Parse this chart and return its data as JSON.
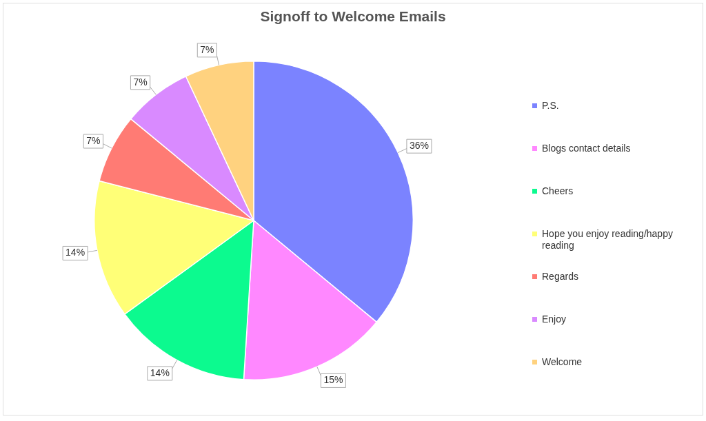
{
  "chart_data": {
    "type": "pie",
    "title": "Signoff to Welcome Emails",
    "categories": [
      "P.S.",
      "Blogs contact details",
      "Cheers",
      "Hope you enjoy reading/happy reading",
      "Regards",
      "Enjoy",
      "Welcome"
    ],
    "values": [
      36,
      15,
      14,
      14,
      7,
      7,
      7
    ],
    "colors": [
      "#7b83ff",
      "#ff88ff",
      "#0cfa8f",
      "#ffff77",
      "#ff7b74",
      "#d98aff",
      "#ffd27f"
    ],
    "value_labels": [
      "36%",
      "15%",
      "14%",
      "14%",
      "7%",
      "7%",
      "7%"
    ],
    "legend": "right"
  }
}
